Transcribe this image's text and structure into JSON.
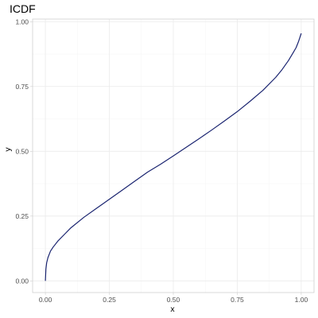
{
  "chart_data": {
    "type": "line",
    "title": "ICDF",
    "xlabel": "x",
    "ylabel": "y",
    "xlim": [
      -0.05,
      1.05
    ],
    "ylim": [
      -0.045,
      1.01
    ],
    "x_ticks": [
      0.0,
      0.25,
      0.5,
      0.75,
      1.0
    ],
    "x_tick_labels": [
      "0.00",
      "0.25",
      "0.50",
      "0.75",
      "1.00"
    ],
    "y_ticks": [
      0.0,
      0.25,
      0.5,
      0.75,
      1.0
    ],
    "y_tick_labels": [
      "0.00",
      "0.25",
      "0.50",
      "0.75",
      "1.00"
    ],
    "grid": true,
    "series": [
      {
        "color": "#1a2470",
        "x": [
          0.0,
          0.002,
          0.005,
          0.01,
          0.02,
          0.03,
          0.05,
          0.075,
          0.1,
          0.15,
          0.2,
          0.25,
          0.3,
          0.35,
          0.4,
          0.45,
          0.5,
          0.55,
          0.6,
          0.65,
          0.7,
          0.75,
          0.8,
          0.85,
          0.9,
          0.925,
          0.95,
          0.97,
          0.98,
          0.99,
          0.995,
          1.0
        ],
        "y": [
          0.0,
          0.045,
          0.07,
          0.09,
          0.115,
          0.13,
          0.155,
          0.18,
          0.205,
          0.245,
          0.28,
          0.315,
          0.35,
          0.385,
          0.42,
          0.45,
          0.482,
          0.515,
          0.548,
          0.582,
          0.617,
          0.653,
          0.693,
          0.735,
          0.785,
          0.815,
          0.85,
          0.883,
          0.9,
          0.925,
          0.94,
          0.955
        ]
      }
    ]
  }
}
